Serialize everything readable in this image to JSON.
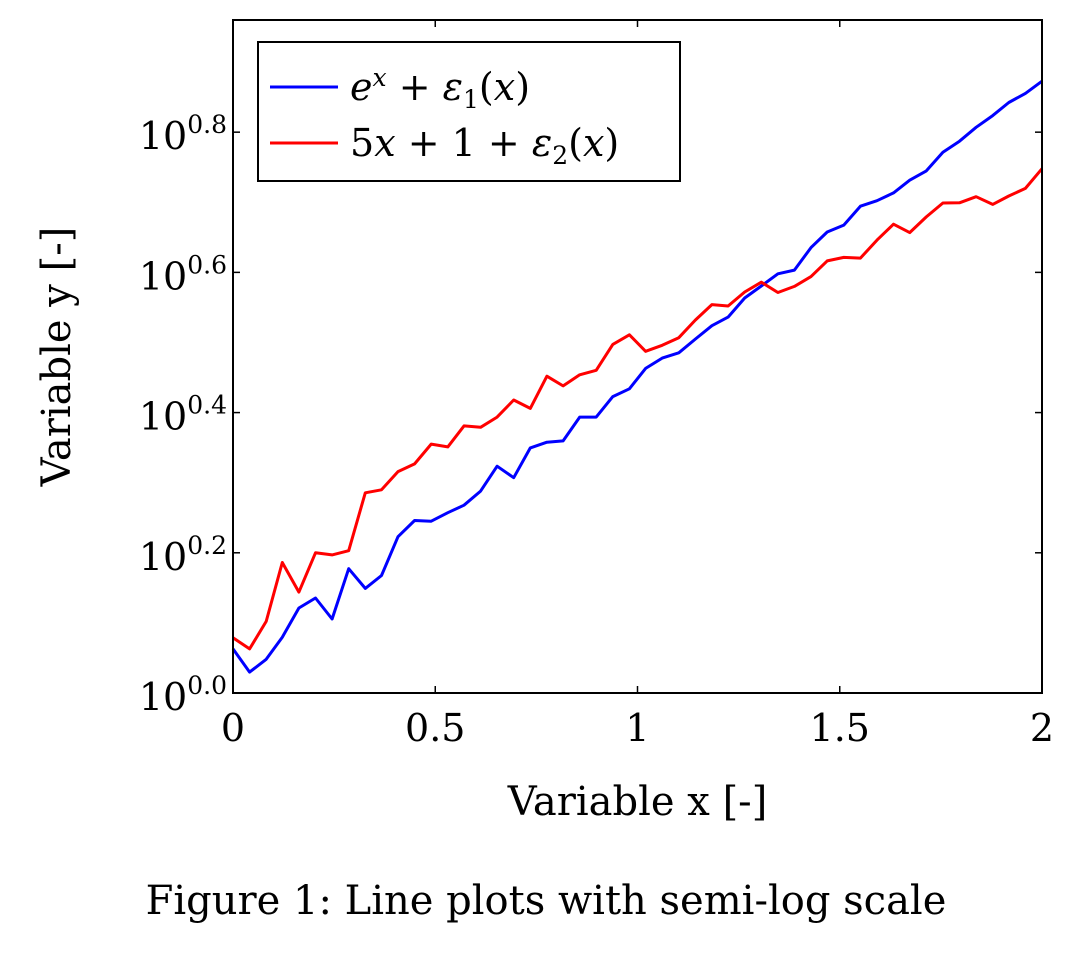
{
  "caption": "Figure 1: Line plots with semi-log scale",
  "chart_data": {
    "type": "line",
    "xlabel": "Variable x [-]",
    "ylabel": "Variable y [-]",
    "xscale": "linear",
    "yscale": "log10",
    "xlim": [
      0,
      2
    ],
    "ylim_log10": [
      0,
      0.96
    ],
    "xticks": [
      0,
      0.5,
      1,
      1.5,
      2
    ],
    "xtick_labels": [
      "0",
      "0.5",
      "1",
      "1.5",
      "2"
    ],
    "yticks_log10": [
      0,
      0.2,
      0.4,
      0.6,
      0.8
    ],
    "ytick_base": "10",
    "ytick_exponents": [
      "0.0",
      "0.2",
      "0.4",
      "0.6",
      "0.8"
    ],
    "grid": false,
    "legend_position": "top-left",
    "series": [
      {
        "name": "e^x + ε1(x)",
        "color": "#0000ff",
        "x": [
          0,
          0.041,
          0.082,
          0.122,
          0.163,
          0.204,
          0.245,
          0.286,
          0.327,
          0.367,
          0.408,
          0.449,
          0.49,
          0.531,
          0.571,
          0.612,
          0.653,
          0.694,
          0.735,
          0.776,
          0.816,
          0.857,
          0.898,
          0.939,
          0.98,
          1.02,
          1.061,
          1.102,
          1.143,
          1.184,
          1.224,
          1.265,
          1.306,
          1.347,
          1.388,
          1.429,
          1.469,
          1.51,
          1.551,
          1.592,
          1.633,
          1.673,
          1.714,
          1.755,
          1.796,
          1.837,
          1.878,
          1.918,
          1.959,
          2.0
        ],
        "y": [
          1.156,
          1.071,
          1.117,
          1.201,
          1.322,
          1.366,
          1.275,
          1.504,
          1.41,
          1.471,
          1.671,
          1.762,
          1.758,
          1.808,
          1.853,
          1.941,
          2.106,
          2.028,
          2.237,
          2.279,
          2.289,
          2.475,
          2.475,
          2.647,
          2.716,
          2.904,
          3.004,
          3.057,
          3.198,
          3.341,
          3.437,
          3.66,
          3.807,
          3.963,
          4.011,
          4.319,
          4.546,
          4.65,
          4.948,
          5.037,
          5.168,
          5.389,
          5.556,
          5.908,
          6.126,
          6.412,
          6.662,
          6.956,
          7.167,
          7.459
        ]
      },
      {
        "name": "5x + 1 + ε2(x)",
        "color": "#ff0000",
        "x": [
          0,
          0.041,
          0.082,
          0.122,
          0.163,
          0.204,
          0.245,
          0.286,
          0.327,
          0.367,
          0.408,
          0.449,
          0.49,
          0.531,
          0.571,
          0.612,
          0.653,
          0.694,
          0.735,
          0.776,
          0.816,
          0.857,
          0.898,
          0.939,
          0.98,
          1.02,
          1.061,
          1.102,
          1.143,
          1.184,
          1.224,
          1.265,
          1.306,
          1.347,
          1.388,
          1.429,
          1.469,
          1.51,
          1.551,
          1.592,
          1.633,
          1.673,
          1.714,
          1.755,
          1.796,
          1.837,
          1.878,
          1.918,
          1.959,
          2.0
        ],
        "y": [
          1.199,
          1.156,
          1.265,
          1.535,
          1.393,
          1.585,
          1.574,
          1.596,
          1.93,
          1.949,
          2.069,
          2.122,
          2.265,
          2.244,
          2.404,
          2.393,
          2.475,
          2.618,
          2.547,
          2.831,
          2.742,
          2.844,
          2.886,
          3.142,
          3.243,
          3.072,
          3.133,
          3.212,
          3.404,
          3.581,
          3.565,
          3.733,
          3.855,
          3.726,
          3.802,
          3.926,
          4.134,
          4.182,
          4.172,
          4.426,
          4.663,
          4.536,
          4.776,
          5.0,
          5.003,
          5.105,
          4.977,
          5.117,
          5.245,
          5.597
        ]
      }
    ]
  }
}
